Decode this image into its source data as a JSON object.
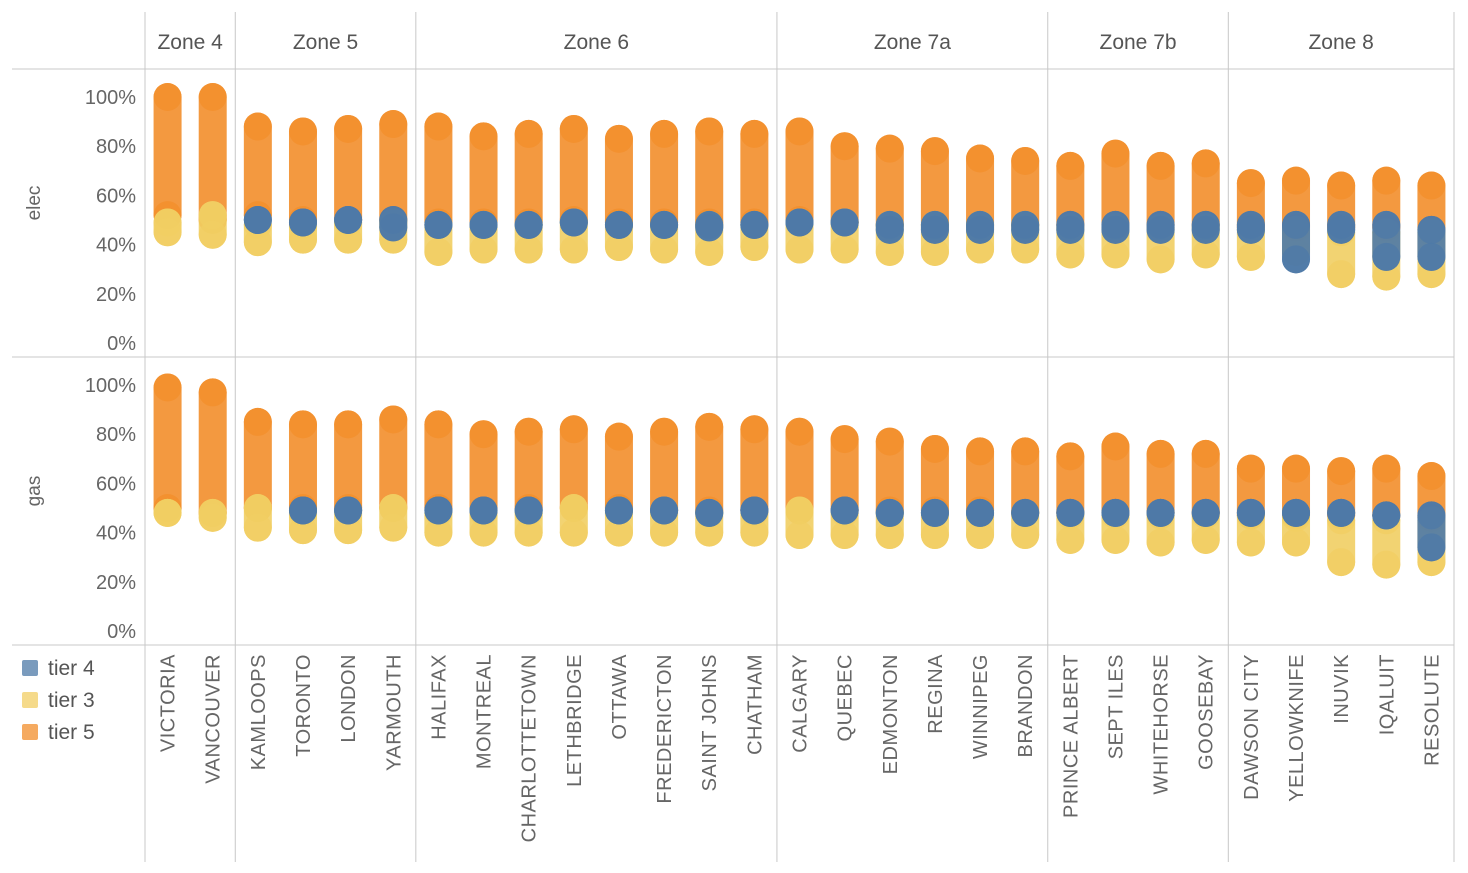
{
  "colors": {
    "tier 4": "#4e79a7",
    "tier 3": "#f1ce63",
    "tier 5": "#f28e2b"
  },
  "chart_data": {
    "type": "scatter",
    "zones": [
      {
        "name": "Zone 4",
        "cities": [
          "VICTORIA",
          "VANCOUVER"
        ]
      },
      {
        "name": "Zone 5",
        "cities": [
          "KAMLOOPS",
          "TORONTO",
          "LONDON",
          "YARMOUTH"
        ]
      },
      {
        "name": "Zone 6",
        "cities": [
          "HALIFAX",
          "MONTREAL",
          "CHARLOTTETOWN",
          "LETHBRIDGE",
          "OTTAWA",
          "FREDERICTON",
          "SAINT JOHNS",
          "CHATHAM"
        ]
      },
      {
        "name": "Zone 7a",
        "cities": [
          "CALGARY",
          "QUEBEC",
          "EDMONTON",
          "REGINA",
          "WINNIPEG",
          "BRANDON"
        ]
      },
      {
        "name": "Zone 7b",
        "cities": [
          "PRINCE ALBERT",
          "SEPT ILES",
          "WHITEHORSE",
          "GOOSEBAY"
        ]
      },
      {
        "name": "Zone 8",
        "cities": [
          "DAWSON CITY",
          "YELLOWKNIFE",
          "INUVIK",
          "IQALUIT",
          "RESOLUTE"
        ]
      }
    ],
    "rows": [
      "elec",
      "gas"
    ],
    "y_ticks": [
      "100%",
      "80%",
      "60%",
      "40%",
      "20%",
      "0%"
    ],
    "ylim": [
      0,
      1.05
    ],
    "legend": [
      "tier 4",
      "tier 3",
      "tier 5"
    ],
    "series": {
      "elec": {
        "tier 5": [
          [
            0.52,
            1.0
          ],
          [
            0.5,
            1.0
          ],
          [
            0.52,
            0.88
          ],
          [
            0.5,
            0.86
          ],
          [
            0.5,
            0.87
          ],
          [
            0.5,
            0.89
          ],
          [
            0.49,
            0.88
          ],
          [
            0.49,
            0.84
          ],
          [
            0.49,
            0.85
          ],
          [
            0.5,
            0.87
          ],
          [
            0.49,
            0.83
          ],
          [
            0.49,
            0.85
          ],
          [
            0.49,
            0.86
          ],
          [
            0.49,
            0.85
          ],
          [
            0.5,
            0.86
          ],
          [
            0.49,
            0.8
          ],
          [
            0.48,
            0.79
          ],
          [
            0.48,
            0.78
          ],
          [
            0.48,
            0.75
          ],
          [
            0.48,
            0.74
          ],
          [
            0.48,
            0.72
          ],
          [
            0.48,
            0.77
          ],
          [
            0.48,
            0.72
          ],
          [
            0.48,
            0.73
          ],
          [
            0.47,
            0.65
          ],
          [
            0.47,
            0.66
          ],
          [
            0.47,
            0.64
          ],
          [
            0.47,
            0.66
          ],
          [
            0.46,
            0.64
          ]
        ],
        "tier 3": [
          [
            0.45,
            0.49
          ],
          [
            0.44,
            0.52
          ],
          [
            0.41,
            0.48
          ],
          [
            0.42,
            0.48
          ],
          [
            0.42,
            0.49
          ],
          [
            0.42,
            0.49
          ],
          [
            0.37,
            0.48
          ],
          [
            0.38,
            0.48
          ],
          [
            0.38,
            0.48
          ],
          [
            0.38,
            0.49
          ],
          [
            0.39,
            0.48
          ],
          [
            0.38,
            0.48
          ],
          [
            0.37,
            0.48
          ],
          [
            0.39,
            0.48
          ],
          [
            0.38,
            0.49
          ],
          [
            0.38,
            0.49
          ],
          [
            0.37,
            0.48
          ],
          [
            0.37,
            0.48
          ],
          [
            0.38,
            0.48
          ],
          [
            0.38,
            0.48
          ],
          [
            0.36,
            0.47
          ],
          [
            0.36,
            0.47
          ],
          [
            0.34,
            0.47
          ],
          [
            0.36,
            0.47
          ],
          [
            0.35,
            0.46
          ],
          [
            0.37,
            0.46
          ],
          [
            0.28,
            0.45
          ],
          [
            0.27,
            0.45
          ],
          [
            0.28,
            0.45
          ]
        ],
        "tier 4": [
          null,
          null,
          [
            0.5,
            0.5
          ],
          [
            0.49,
            0.49
          ],
          [
            0.5,
            0.5
          ],
          [
            0.47,
            0.5
          ],
          [
            0.48,
            0.48
          ],
          [
            0.48,
            0.48
          ],
          [
            0.48,
            0.48
          ],
          [
            0.49,
            0.49
          ],
          [
            0.48,
            0.48
          ],
          [
            0.48,
            0.48
          ],
          [
            0.47,
            0.48
          ],
          [
            0.48,
            0.48
          ],
          [
            0.49,
            0.49
          ],
          [
            0.49,
            0.49
          ],
          [
            0.46,
            0.48
          ],
          [
            0.46,
            0.48
          ],
          [
            0.46,
            0.48
          ],
          [
            0.46,
            0.48
          ],
          [
            0.46,
            0.48
          ],
          [
            0.46,
            0.48
          ],
          [
            0.46,
            0.48
          ],
          [
            0.46,
            0.48
          ],
          [
            0.46,
            0.48
          ],
          [
            0.34,
            0.48
          ],
          [
            0.46,
            0.48
          ],
          [
            0.35,
            0.48
          ],
          [
            0.35,
            0.46
          ]
        ]
      },
      "gas": {
        "tier 5": [
          [
            0.5,
            0.99
          ],
          [
            0.48,
            0.97
          ],
          [
            0.5,
            0.85
          ],
          [
            0.5,
            0.84
          ],
          [
            0.5,
            0.84
          ],
          [
            0.5,
            0.86
          ],
          [
            0.5,
            0.84
          ],
          [
            0.49,
            0.8
          ],
          [
            0.5,
            0.81
          ],
          [
            0.5,
            0.82
          ],
          [
            0.5,
            0.79
          ],
          [
            0.49,
            0.81
          ],
          [
            0.49,
            0.83
          ],
          [
            0.49,
            0.82
          ],
          [
            0.49,
            0.81
          ],
          [
            0.49,
            0.78
          ],
          [
            0.49,
            0.77
          ],
          [
            0.49,
            0.74
          ],
          [
            0.49,
            0.73
          ],
          [
            0.48,
            0.73
          ],
          [
            0.48,
            0.71
          ],
          [
            0.48,
            0.75
          ],
          [
            0.48,
            0.72
          ],
          [
            0.48,
            0.72
          ],
          [
            0.47,
            0.66
          ],
          [
            0.47,
            0.66
          ],
          [
            0.47,
            0.65
          ],
          [
            0.47,
            0.66
          ],
          [
            0.46,
            0.63
          ]
        ],
        "tier 3": [
          [
            0.48,
            0.48
          ],
          [
            0.46,
            0.48
          ],
          [
            0.42,
            0.5
          ],
          [
            0.41,
            0.48
          ],
          [
            0.41,
            0.49
          ],
          [
            0.42,
            0.5
          ],
          [
            0.4,
            0.48
          ],
          [
            0.4,
            0.48
          ],
          [
            0.4,
            0.48
          ],
          [
            0.4,
            0.5
          ],
          [
            0.4,
            0.49
          ],
          [
            0.4,
            0.49
          ],
          [
            0.4,
            0.48
          ],
          [
            0.4,
            0.48
          ],
          [
            0.39,
            0.49
          ],
          [
            0.39,
            0.48
          ],
          [
            0.39,
            0.48
          ],
          [
            0.39,
            0.48
          ],
          [
            0.39,
            0.48
          ],
          [
            0.39,
            0.48
          ],
          [
            0.37,
            0.47
          ],
          [
            0.37,
            0.47
          ],
          [
            0.36,
            0.47
          ],
          [
            0.37,
            0.47
          ],
          [
            0.36,
            0.47
          ],
          [
            0.36,
            0.46
          ],
          [
            0.28,
            0.45
          ],
          [
            0.27,
            0.45
          ],
          [
            0.28,
            0.45
          ]
        ],
        "tier 4": [
          null,
          null,
          null,
          [
            0.49,
            0.49
          ],
          [
            0.49,
            0.49
          ],
          null,
          [
            0.49,
            0.49
          ],
          [
            0.49,
            0.49
          ],
          [
            0.49,
            0.49
          ],
          null,
          [
            0.49,
            0.49
          ],
          [
            0.49,
            0.49
          ],
          [
            0.48,
            0.48
          ],
          [
            0.49,
            0.49
          ],
          null,
          [
            0.49,
            0.49
          ],
          [
            0.48,
            0.48
          ],
          [
            0.48,
            0.48
          ],
          [
            0.48,
            0.48
          ],
          [
            0.48,
            0.48
          ],
          [
            0.48,
            0.48
          ],
          [
            0.48,
            0.48
          ],
          [
            0.48,
            0.48
          ],
          [
            0.48,
            0.48
          ],
          [
            0.48,
            0.48
          ],
          [
            0.48,
            0.48
          ],
          [
            0.48,
            0.48
          ],
          [
            0.47,
            0.47
          ],
          [
            0.34,
            0.47
          ]
        ]
      }
    }
  }
}
